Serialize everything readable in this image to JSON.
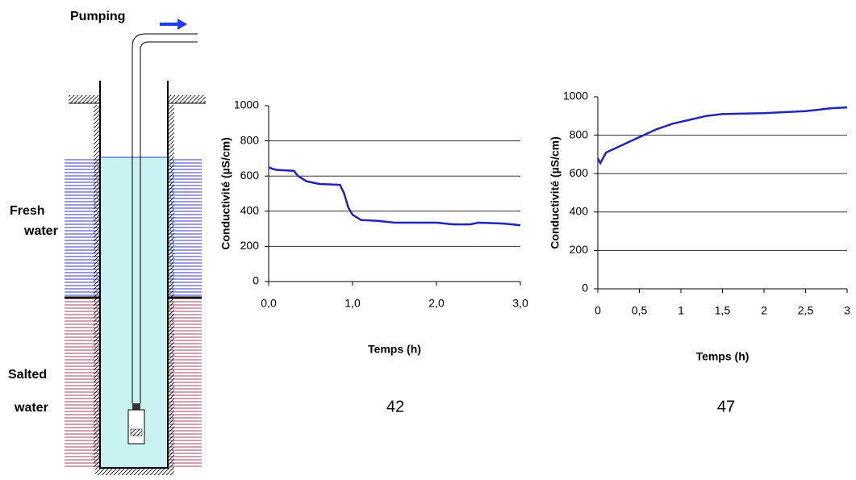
{
  "diagram": {
    "pumping": "Pumping",
    "fresh_water": [
      "Fresh",
      "water"
    ],
    "salted_water": [
      "Salted",
      "water"
    ]
  },
  "chart_data": [
    {
      "type": "line",
      "ylabel": "Conductivité (µS/cm)",
      "xlabel": "Temps (h)",
      "caption": "42",
      "x": [
        0,
        0.05,
        0.1,
        0.3,
        0.35,
        0.45,
        0.6,
        0.85,
        0.9,
        0.95,
        1.0,
        1.1,
        1.3,
        1.5,
        2.0,
        2.2,
        2.4,
        2.5,
        2.8,
        3.0
      ],
      "series": [
        {
          "color": "#2424b4",
          "values": [
            650,
            640,
            635,
            630,
            600,
            570,
            555,
            550,
            500,
            420,
            380,
            350,
            345,
            335,
            335,
            325,
            325,
            335,
            330,
            320
          ]
        }
      ],
      "xlim": [
        0,
        3
      ],
      "ylim": [
        0,
        1000
      ],
      "xticks": [
        {
          "value": 0,
          "label": "0,0"
        },
        {
          "value": 1,
          "label": "1,0"
        },
        {
          "value": 2,
          "label": "2,0"
        },
        {
          "value": 3,
          "label": "3,0"
        }
      ],
      "yticks": [
        0,
        200,
        400,
        600,
        800,
        1000
      ],
      "grid": true
    },
    {
      "type": "line",
      "ylabel": "Conductivité (µS/cm)",
      "xlabel": "Temps (h)",
      "caption": "47",
      "x": [
        0,
        0.03,
        0.1,
        0.3,
        0.5,
        0.7,
        0.9,
        1.1,
        1.3,
        1.5,
        2.0,
        2.5,
        2.8,
        3.0
      ],
      "series": [
        {
          "color": "#2424b4",
          "values": [
            680,
            655,
            710,
            750,
            790,
            830,
            860,
            880,
            900,
            910,
            915,
            925,
            940,
            945
          ]
        }
      ],
      "xlim": [
        0,
        3
      ],
      "ylim": [
        0,
        1000
      ],
      "xticks": [
        0,
        {
          "value": 0.5,
          "label": "0,5"
        },
        1,
        {
          "value": 1.5,
          "label": "1,5"
        },
        2,
        {
          "value": 2.5,
          "label": "2,5"
        },
        3
      ],
      "yticks": [
        0,
        200,
        400,
        600,
        800,
        1000
      ],
      "grid": true
    }
  ]
}
